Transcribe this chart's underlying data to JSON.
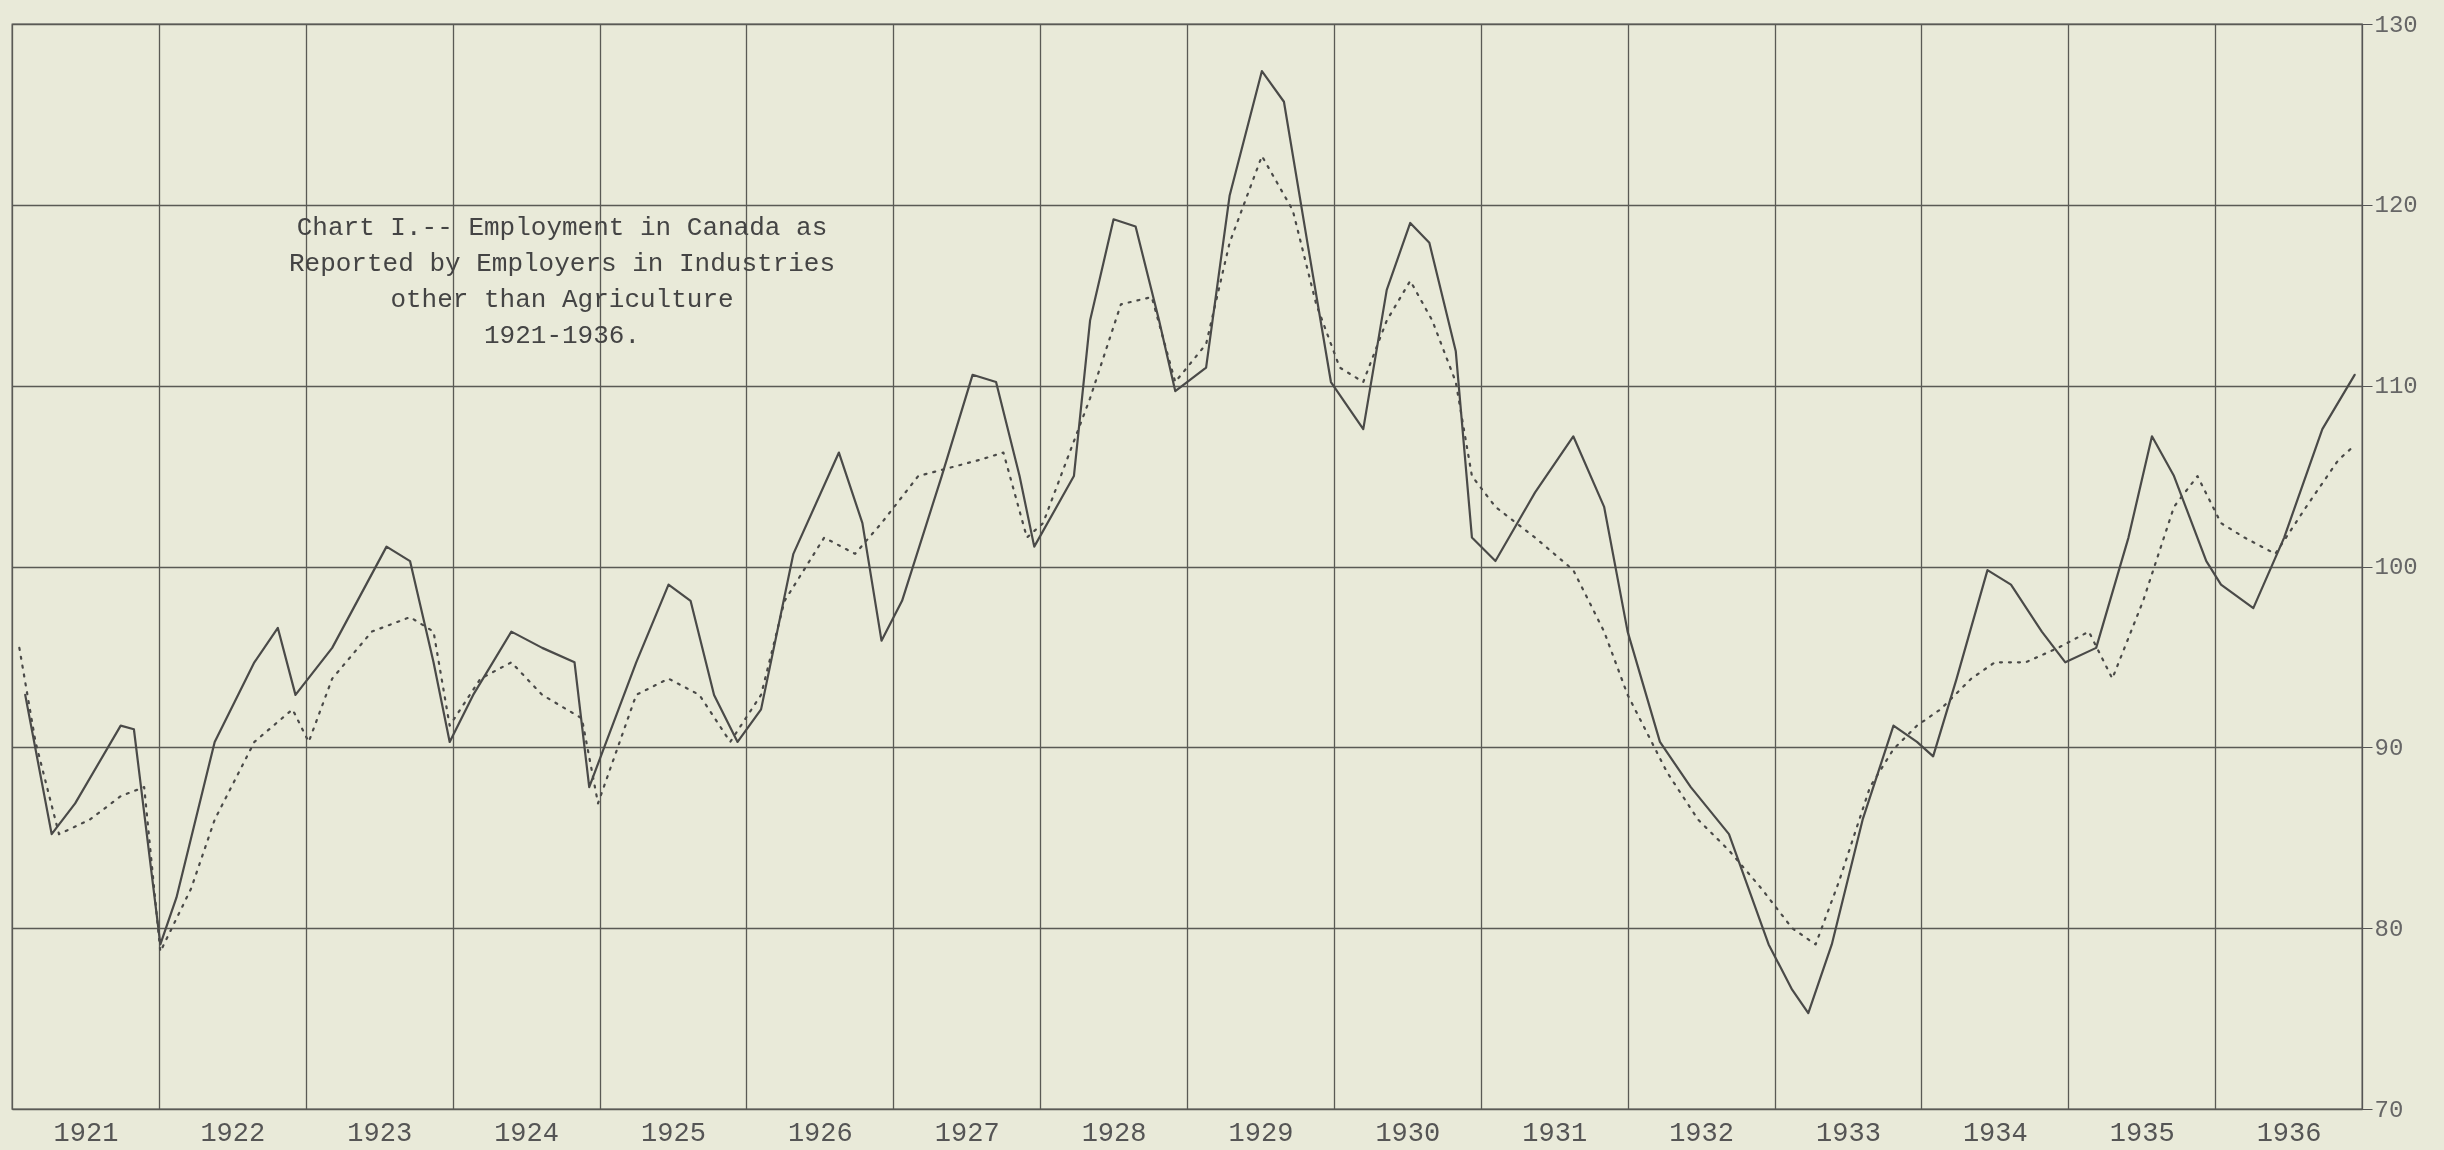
{
  "chart_data": {
    "type": "line",
    "title": "Chart I.-- Employment in Canada as\nReported by Employers in Industries\nother than Agriculture\n1921-1936.",
    "xlim": [
      1921,
      1937
    ],
    "ylim": [
      70,
      130
    ],
    "xticks": [
      {
        "value": 1921,
        "label": null
      },
      {
        "value": 1921.5,
        "label": "1921"
      },
      {
        "value": 1922,
        "label": null
      },
      {
        "value": 1922.5,
        "label": "1922"
      },
      {
        "value": 1923,
        "label": null
      },
      {
        "value": 1923.5,
        "label": "1923"
      },
      {
        "value": 1924,
        "label": null
      },
      {
        "value": 1924.5,
        "label": "1924"
      },
      {
        "value": 1925,
        "label": null
      },
      {
        "value": 1925.5,
        "label": "1925"
      },
      {
        "value": 1926,
        "label": null
      },
      {
        "value": 1926.5,
        "label": "1926"
      },
      {
        "value": 1927,
        "label": null
      },
      {
        "value": 1927.5,
        "label": "1927"
      },
      {
        "value": 1928,
        "label": null
      },
      {
        "value": 1928.5,
        "label": "1928"
      },
      {
        "value": 1929,
        "label": null
      },
      {
        "value": 1929.5,
        "label": "1929"
      },
      {
        "value": 1930,
        "label": null
      },
      {
        "value": 1930.5,
        "label": "1930"
      },
      {
        "value": 1931,
        "label": null
      },
      {
        "value": 1931.5,
        "label": "1931"
      },
      {
        "value": 1932,
        "label": null
      },
      {
        "value": 1932.5,
        "label": "1932"
      },
      {
        "value": 1933,
        "label": null
      },
      {
        "value": 1933.5,
        "label": "1933"
      },
      {
        "value": 1934,
        "label": null
      },
      {
        "value": 1934.5,
        "label": "1934"
      },
      {
        "value": 1935,
        "label": null
      },
      {
        "value": 1935.5,
        "label": "1935"
      },
      {
        "value": 1936,
        "label": null
      },
      {
        "value": 1936.5,
        "label": "1936"
      },
      {
        "value": 1937,
        "label": null
      }
    ],
    "yticks": [
      70,
      80,
      90,
      100,
      110,
      120,
      130
    ],
    "grid": true,
    "series": [
      {
        "color": "#4a4a48",
        "line_style": "solid",
        "x": [
          1921.09,
          1921.27,
          1921.43,
          1921.74,
          1921.83,
          1922.01,
          1922.12,
          1922.38,
          1922.65,
          1922.81,
          1922.93,
          1923.18,
          1923.55,
          1923.71,
          1923.87,
          1923.98,
          1924.14,
          1924.4,
          1924.61,
          1924.83,
          1924.93,
          1925.25,
          1925.47,
          1925.62,
          1925.78,
          1925.94,
          1926.1,
          1926.32,
          1926.63,
          1926.79,
          1926.92,
          1927.06,
          1927.33,
          1927.54,
          1927.7,
          1927.86,
          1927.96,
          1928.23,
          1928.34,
          1928.5,
          1928.65,
          1928.81,
          1928.92,
          1929.13,
          1929.29,
          1929.51,
          1929.66,
          1929.82,
          1929.98,
          1930.2,
          1930.36,
          1930.52,
          1930.65,
          1930.83,
          1930.94,
          1931.1,
          1931.37,
          1931.63,
          1931.84,
          1932,
          1932.22,
          1932.43,
          1932.69,
          1932.96,
          1933.12,
          1933.23,
          1933.39,
          1933.6,
          1933.81,
          1933.97,
          1934.08,
          1934.24,
          1934.45,
          1934.61,
          1934.82,
          1934.98,
          1935.19,
          1935.41,
          1935.57,
          1935.72,
          1935.94,
          1936.04,
          1936.26,
          1936.47,
          1936.73,
          1936.95
        ],
        "values": [
          92.9,
          85.2,
          86.9,
          91.2,
          91,
          79.1,
          81.7,
          90.3,
          94.7,
          96.6,
          92.9,
          95.5,
          101.1,
          100.3,
          94.7,
          90.3,
          92.9,
          96.4,
          95.5,
          94.7,
          87.8,
          94.7,
          99,
          98.1,
          92.9,
          90.3,
          92.1,
          100.7,
          106.3,
          102.4,
          95.9,
          98.1,
          105,
          110.6,
          110.2,
          105,
          101.1,
          105,
          113.6,
          119.2,
          118.8,
          113.6,
          109.7,
          111,
          120.5,
          127.4,
          125.7,
          117.9,
          110.2,
          107.6,
          115.3,
          119,
          117.9,
          111.9,
          101.6,
          100.3,
          104.1,
          107.2,
          103.3,
          96.4,
          90.3,
          87.8,
          85.2,
          79.1,
          76.6,
          75.3,
          79.1,
          86,
          91.2,
          90.3,
          89.5,
          93.8,
          99.8,
          99,
          96.4,
          94.7,
          95.5,
          101.6,
          107.2,
          105,
          100.3,
          99,
          97.7,
          101.6,
          107.6,
          110.6
        ]
      },
      {
        "color": "#4a4a48",
        "line_style": "dotted",
        "x": [
          1921.05,
          1921.16,
          1921.32,
          1921.53,
          1921.74,
          1921.9,
          1922.01,
          1922.22,
          1922.38,
          1922.65,
          1922.91,
          1923.02,
          1923.18,
          1923.45,
          1923.71,
          1923.87,
          1923.98,
          1924.19,
          1924.4,
          1924.61,
          1924.88,
          1924.99,
          1925.25,
          1925.47,
          1925.68,
          1925.89,
          1926.1,
          1926.26,
          1926.53,
          1926.74,
          1926.92,
          1927.17,
          1927.59,
          1927.75,
          1927.91,
          1928.02,
          1928.34,
          1928.55,
          1928.76,
          1928.92,
          1929.13,
          1929.29,
          1929.51,
          1929.72,
          1929.88,
          1930.04,
          1930.2,
          1930.36,
          1930.52,
          1930.67,
          1930.83,
          1930.94,
          1931.1,
          1931.37,
          1931.63,
          1931.84,
          1932,
          1932.27,
          1932.48,
          1932.69,
          1932.91,
          1933.12,
          1933.28,
          1933.44,
          1933.65,
          1933.81,
          1933.97,
          1934.13,
          1934.34,
          1934.5,
          1934.71,
          1934.93,
          1935.14,
          1935.3,
          1935.51,
          1935.72,
          1935.88,
          1936.04,
          1936.2,
          1936.41,
          1936.62,
          1936.84,
          1936.95
        ],
        "values": [
          95.5,
          90.3,
          85.2,
          86,
          87.3,
          87.8,
          78.7,
          82.2,
          86,
          90.3,
          92.1,
          90.3,
          93.8,
          96.4,
          97.2,
          96.4,
          91.2,
          93.8,
          94.7,
          92.9,
          91.6,
          86.9,
          92.9,
          93.8,
          92.9,
          90.3,
          92.9,
          98.1,
          101.6,
          100.7,
          102.4,
          105,
          105.9,
          106.3,
          101.6,
          102.4,
          109.3,
          114.5,
          114.9,
          110.2,
          112.3,
          117.9,
          122.7,
          119.7,
          114.5,
          111,
          110.2,
          113.6,
          115.8,
          113.6,
          110.2,
          105,
          103.3,
          101.6,
          99.8,
          96.4,
          92.9,
          88.6,
          86,
          84.3,
          82.2,
          80,
          79.1,
          82.6,
          87.8,
          89.9,
          91.2,
          92.1,
          93.8,
          94.7,
          94.7,
          95.5,
          96.4,
          93.8,
          98.1,
          103.3,
          105,
          102.4,
          101.6,
          100.7,
          103.3,
          105.9,
          106.7
        ]
      }
    ]
  }
}
